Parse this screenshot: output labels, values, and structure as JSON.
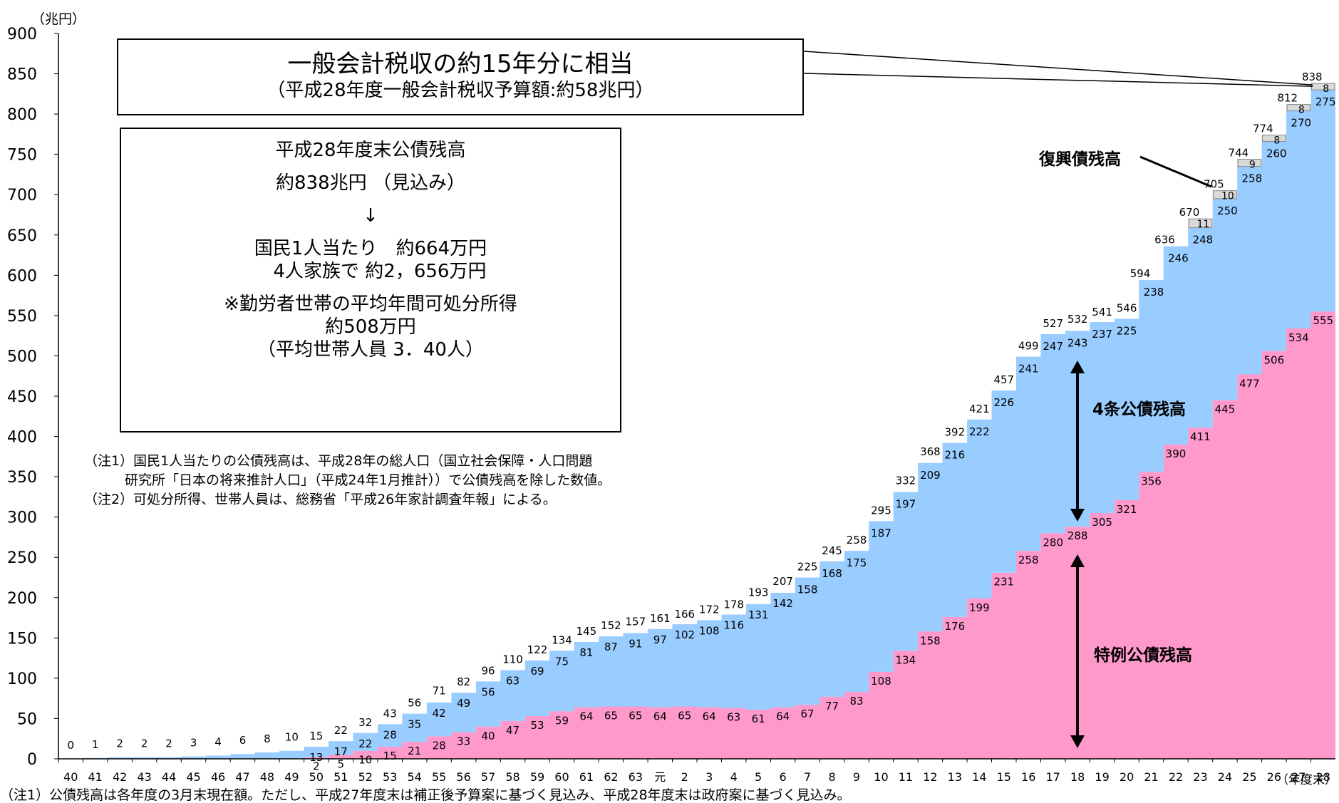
{
  "chart_data": {
    "type": "area",
    "ylabel": "（兆円）",
    "xlabel": "（年度末）",
    "ylim": [
      0,
      900
    ],
    "yticks": [
      0,
      50,
      100,
      150,
      200,
      250,
      300,
      350,
      400,
      450,
      500,
      550,
      600,
      650,
      700,
      750,
      800,
      850,
      900
    ],
    "categories": [
      "40",
      "41",
      "42",
      "43",
      "44",
      "45",
      "46",
      "47",
      "48",
      "49",
      "50",
      "51",
      "52",
      "53",
      "54",
      "55",
      "56",
      "57",
      "58",
      "59",
      "60",
      "61",
      "62",
      "63",
      "元",
      "2",
      "3",
      "4",
      "5",
      "6",
      "7",
      "8",
      "9",
      "10",
      "11",
      "12",
      "13",
      "14",
      "15",
      "16",
      "17",
      "18",
      "19",
      "20",
      "21",
      "22",
      "23",
      "24",
      "25",
      "26",
      "27",
      "28"
    ],
    "series": [
      {
        "name": "特例公債残高",
        "color": "#ff99cc",
        "values": [
          0,
          0,
          0,
          0,
          0,
          0,
          0,
          0,
          0,
          0,
          2,
          5,
          10,
          15,
          21,
          28,
          33,
          40,
          47,
          53,
          59,
          64,
          65,
          65,
          64,
          65,
          64,
          63,
          61,
          64,
          67,
          77,
          83,
          108,
          134,
          158,
          176,
          199,
          231,
          258,
          280,
          288,
          305,
          321,
          356,
          390,
          411,
          445,
          477,
          506,
          534,
          555
        ]
      },
      {
        "name": "4条公債残高",
        "color": "#99ccff",
        "values": [
          0,
          1,
          2,
          2,
          2,
          3,
          4,
          6,
          8,
          10,
          13,
          17,
          22,
          28,
          35,
          42,
          49,
          56,
          63,
          69,
          75,
          81,
          87,
          91,
          97,
          102,
          108,
          116,
          131,
          142,
          158,
          168,
          175,
          187,
          197,
          209,
          216,
          222,
          226,
          241,
          247,
          243,
          237,
          225,
          238,
          246,
          248,
          250,
          258,
          260,
          270,
          275
        ]
      },
      {
        "name": "復興債残高",
        "color": "#d0d0d0",
        "values": [
          0,
          0,
          0,
          0,
          0,
          0,
          0,
          0,
          0,
          0,
          0,
          0,
          0,
          0,
          0,
          0,
          0,
          0,
          0,
          0,
          0,
          0,
          0,
          0,
          0,
          0,
          0,
          0,
          0,
          0,
          0,
          0,
          0,
          0,
          0,
          0,
          0,
          0,
          0,
          0,
          0,
          0,
          0,
          0,
          0,
          0,
          11,
          10,
          9,
          8,
          8,
          8
        ]
      }
    ],
    "totals": [
      0,
      1,
      2,
      2,
      2,
      3,
      4,
      6,
      8,
      10,
      15,
      22,
      32,
      43,
      56,
      71,
      82,
      96,
      110,
      122,
      134,
      145,
      152,
      157,
      161,
      166,
      172,
      178,
      193,
      207,
      225,
      245,
      258,
      295,
      332,
      368,
      392,
      421,
      457,
      499,
      527,
      532,
      541,
      546,
      594,
      636,
      670,
      705,
      744,
      774,
      812,
      838
    ],
    "grid": false,
    "legend": "inline labels"
  },
  "annotations": {
    "box1_line1": "一般会計税収の約15年分に相当",
    "box1_line2": "（平成28年度一般会計税収予算額:約58兆円）",
    "box2_lines": [
      "平成28年度末公債残高",
      "",
      "約838兆円 （見込み）",
      "",
      "↓",
      "",
      "国民1人当たり　約664万円",
      "　4人家族で  約2，656万円",
      "",
      "※勤労者世帯の平均年間可処分所得",
      "約508万円",
      "（平均世帯人員  3．40人）"
    ],
    "note1": "（注1）国民1人当たりの公債残高は、平成28年の総人口（国立社会保障・人口問題",
    "note1b": "　　　研究所「日本の将来推計人口」（平成24年1月推計））で公債残高を除した数値。",
    "note2": "（注2）可処分所得、世帯人員は、総務省「平成26年家計調査年報」による。",
    "footnote": "（注1）公債残高は各年度の3月末現在額。ただし、平成27年度末は補正後予算案に基づく見込み、平成28年度末は政府案に基づく見込み。"
  },
  "series_labels": {
    "fukko": "復興債残高",
    "kensetsu": "4条公債残高",
    "tokurei": "特例公債残高"
  },
  "colors": {
    "tokurei": "#ff99cc",
    "kensetsu": "#99ccff",
    "fukko": "#d0d0d0"
  }
}
